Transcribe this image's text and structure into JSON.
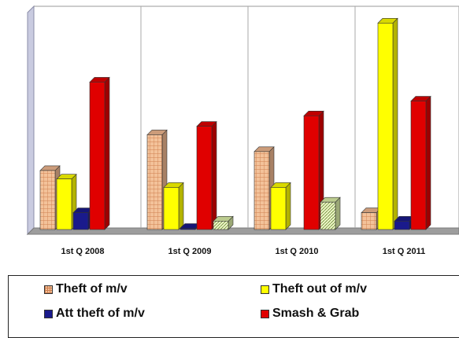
{
  "chart_data": {
    "type": "bar",
    "title": "",
    "xlabel": "",
    "ylabel": "",
    "categories": [
      "1st Q 2008",
      "1st Q 2009",
      "1st Q 2010",
      "1st Q 2011"
    ],
    "series": [
      {
        "name": "Theft of m/v",
        "color": "#f0b890",
        "pattern": "grid",
        "values": [
          28,
          45,
          37,
          8
        ]
      },
      {
        "name": "Theft out of m/v",
        "color": "#ffff00",
        "pattern": "solid",
        "values": [
          24,
          20,
          20,
          98
        ]
      },
      {
        "name": "Att theft of m/v",
        "color": "#1a1a8c",
        "pattern": "solid",
        "values": [
          8,
          0.5,
          0,
          4
        ]
      },
      {
        "name": "Smash & Grab",
        "color": "#e00000",
        "pattern": "solid",
        "values": [
          70,
          49,
          54,
          61
        ]
      },
      {
        "name": "",
        "color": "#ddf0a8",
        "pattern": "hatch",
        "values": [
          0,
          4,
          13,
          0
        ]
      }
    ],
    "ylim": [
      0,
      100
    ],
    "grid": false,
    "legend_position": "bottom"
  }
}
